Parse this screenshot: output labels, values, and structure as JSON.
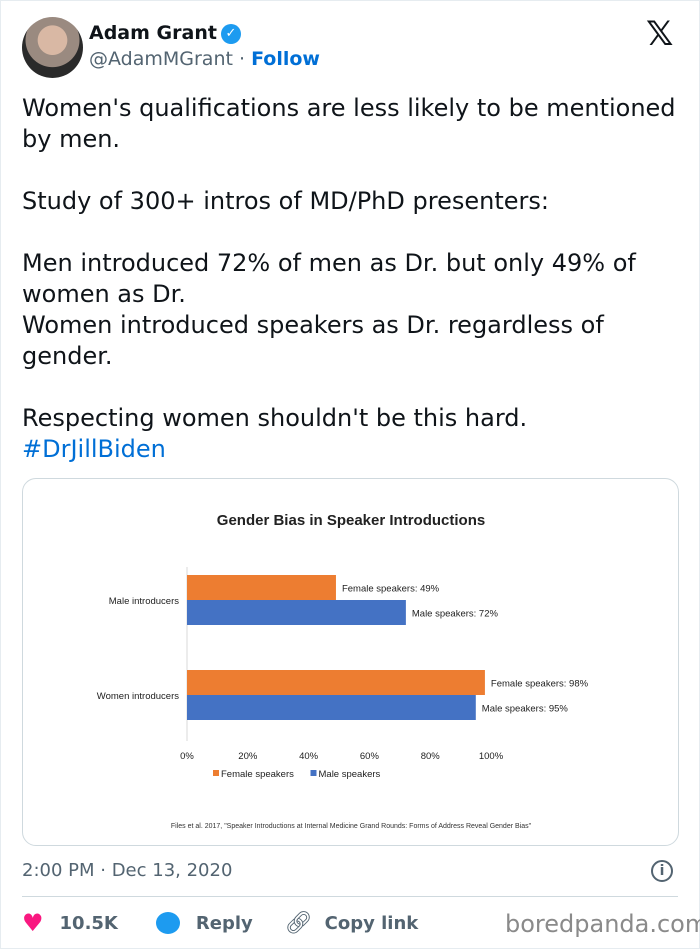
{
  "author": {
    "name": "Adam Grant",
    "handle": "@AdamMGrant",
    "separator": "·",
    "follow_label": "Follow",
    "verified": true
  },
  "tweet": {
    "text": "Women's qualifications are less likely to be mentioned by men.\n\nStudy of 300+ intros of MD/PhD presenters:\n\nMen introduced 72% of men as Dr. but only 49% of women as Dr.\nWomen introduced speakers as Dr. regardless of gender.\n\nRespecting women shouldn't be this hard.",
    "hashtag": "#DrJillBiden",
    "timestamp": "2:00 PM · Dec 13, 2020"
  },
  "actions": {
    "likes": "10.5K",
    "reply_label": "Reply",
    "copy_label": "Copy link"
  },
  "watermark": "boredpanda.com",
  "chart_data": {
    "type": "bar",
    "orientation": "horizontal",
    "title": "Gender Bias in Speaker Introductions",
    "categories": [
      "Male introducers",
      "Women introducers"
    ],
    "series": [
      {
        "name": "Female speakers",
        "values": [
          49,
          98
        ],
        "color": "#ed7d31",
        "labels": [
          "Female speakers: 49%",
          "Female speakers: 98%"
        ]
      },
      {
        "name": "Male speakers",
        "values": [
          72,
          95
        ],
        "color": "#4472c4",
        "labels": [
          "Male speakers: 72%",
          "Male speakers: 95%"
        ]
      }
    ],
    "xlim": [
      0,
      100
    ],
    "xticks": [
      "0%",
      "20%",
      "40%",
      "60%",
      "80%",
      "100%"
    ],
    "legend": "bottom",
    "grid": false,
    "source": "Files et al. 2017, \"Speaker Introductions  at Internal  Medicine Grand Rounds:  Forms of Address Reveal Gender Bias\""
  }
}
